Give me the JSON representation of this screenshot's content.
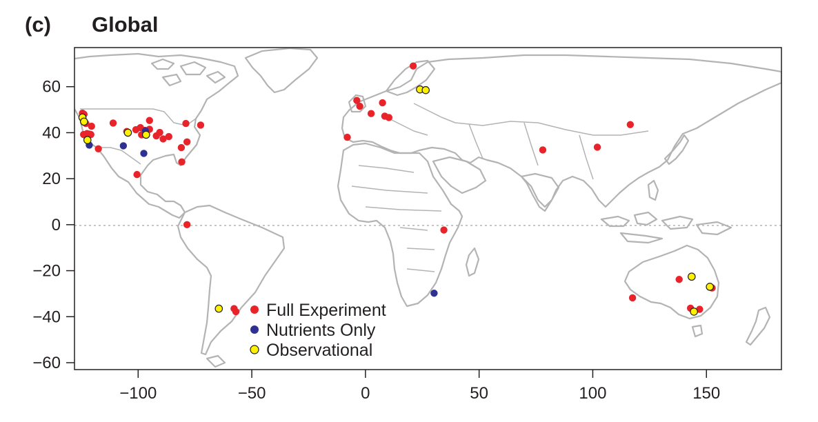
{
  "panel_label": "(c)",
  "title": "Global",
  "colors": {
    "full_experiment": "#e8232a",
    "nutrients_only": "#2e3192",
    "observational": "#fff200",
    "land": "#b3b3b3",
    "equator": "#b3b3b3"
  },
  "chart_data": {
    "type": "scatter",
    "title": "Global",
    "xlim": [
      -128,
      183
    ],
    "ylim": [
      -63,
      77
    ],
    "x_ticks": [
      -100,
      -50,
      0,
      50,
      100,
      150
    ],
    "x_tick_labels": [
      "−100",
      "−50",
      "0",
      "50",
      "100",
      "150"
    ],
    "y_ticks": [
      -60,
      -40,
      -20,
      0,
      20,
      40,
      60
    ],
    "y_tick_labels": [
      "−60",
      "−40",
      "−20",
      "0",
      "20",
      "40",
      "60"
    ],
    "reference_line": {
      "y": 0,
      "style": "dotted"
    },
    "legend": [
      {
        "key": "full",
        "label": "Full Experiment"
      },
      {
        "key": "nutrients",
        "label": "Nutrients Only"
      },
      {
        "key": "observational",
        "label": "Observational"
      }
    ],
    "series": [
      {
        "key": "full",
        "name": "Full Experiment",
        "points": [
          [
            -124.5,
            48.5
          ],
          [
            -123.8,
            48.0
          ],
          [
            -124,
            44.8
          ],
          [
            -123,
            44
          ],
          [
            -120.5,
            42.8
          ],
          [
            -124,
            39.2
          ],
          [
            -122.5,
            39.6
          ],
          [
            -121.5,
            39.4
          ],
          [
            -120.8,
            39.2
          ],
          [
            -122.5,
            37.8
          ],
          [
            -117.5,
            33.0
          ],
          [
            -111,
            44.2
          ],
          [
            -100.5,
            21.8
          ],
          [
            -105,
            40.5
          ],
          [
            -101,
            41.3
          ],
          [
            -99,
            42.2
          ],
          [
            -97,
            41.0
          ],
          [
            -98.5,
            39.1
          ],
          [
            -95,
            45.3
          ],
          [
            -95,
            41.5
          ],
          [
            -92,
            38.6
          ],
          [
            -90.5,
            40.1
          ],
          [
            -89,
            37.3
          ],
          [
            -86.5,
            38.3
          ],
          [
            -81,
            33.5
          ],
          [
            -80.8,
            27.3
          ],
          [
            -78.5,
            36.0
          ],
          [
            -79,
            44.0
          ],
          [
            -72.5,
            43.3
          ],
          [
            -78.5,
            0.0
          ],
          [
            -57.8,
            -36.5
          ],
          [
            -57.0,
            -37.8
          ],
          [
            -3.8,
            54.0
          ],
          [
            -2.5,
            51.5
          ],
          [
            2.5,
            48.3
          ],
          [
            7.5,
            53.0
          ],
          [
            8.5,
            47.2
          ],
          [
            10.3,
            46.6
          ],
          [
            -8,
            38.0
          ],
          [
            21,
            69.0
          ],
          [
            34.5,
            -2.3
          ],
          [
            78,
            32.5
          ],
          [
            102,
            33.7
          ],
          [
            116.5,
            43.5
          ],
          [
            117.5,
            -31.8
          ],
          [
            138,
            -23.8
          ],
          [
            143,
            -36.3
          ],
          [
            147,
            -36.8
          ],
          [
            152.5,
            -27.5
          ]
        ]
      },
      {
        "key": "nutrients",
        "name": "Nutrients Only",
        "points": [
          [
            -121.5,
            34.6
          ],
          [
            -106.5,
            34.3
          ],
          [
            -96.8,
            40.8
          ],
          [
            -97.5,
            31.0
          ],
          [
            30.2,
            -29.8
          ]
        ]
      },
      {
        "key": "observational",
        "name": "Observational",
        "points": [
          [
            -124.5,
            46.6
          ],
          [
            -123.8,
            44.8
          ],
          [
            -122.3,
            36.8
          ],
          [
            -104.5,
            40.0
          ],
          [
            -96.5,
            39.1
          ],
          [
            -64.5,
            -36.5
          ],
          [
            24,
            58.8
          ],
          [
            26.5,
            58.5
          ],
          [
            143.5,
            -22.6
          ],
          [
            144.5,
            -37.8
          ],
          [
            151.5,
            -27.0
          ]
        ]
      }
    ]
  }
}
